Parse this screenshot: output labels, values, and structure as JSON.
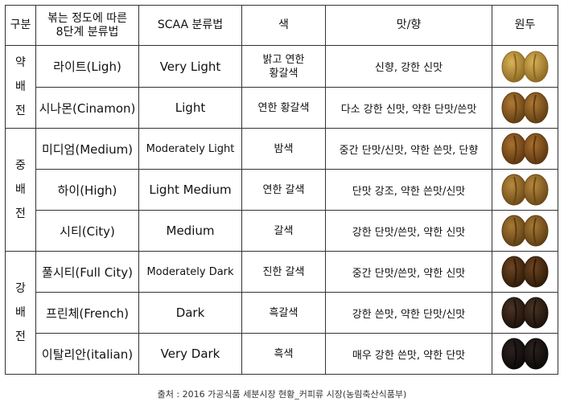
{
  "table": {
    "headers": {
      "group": "구분",
      "stage": "볶는 정도에 따른\n8단계 분류법",
      "scaa": "SCAA 분류법",
      "color": "색",
      "taste": "맛/향",
      "bean": "원두"
    },
    "groups": [
      {
        "chars": [
          "약",
          "배",
          "전"
        ]
      },
      {
        "chars": [
          "중",
          "배",
          "전"
        ]
      },
      {
        "chars": [
          "강",
          "배",
          "전"
        ]
      }
    ],
    "rows": [
      {
        "stage": "라이트(Ligh)",
        "scaa": "Very Light",
        "color": "밝고 연한\n황갈색",
        "taste": "신향, 강한  신맛",
        "bean_color": "#d8b45a",
        "bean_dark": "#8a6620"
      },
      {
        "stage": "시나몬(Cinamon)",
        "scaa": "Light",
        "color": "연한 황갈색",
        "taste": "다소 강한 신맛, 약한 단맛/쓴맛",
        "bean_color": "#b07a35",
        "bean_dark": "#5e3b12"
      },
      {
        "stage": "미디엄(Medium)",
        "scaa": "Moderately Light",
        "color": "밤색",
        "taste": "중간 단맛/신맛, 약한 쓴맛, 단향",
        "bean_color": "#a8702e",
        "bean_dark": "#5a3510"
      },
      {
        "stage": "하이(High)",
        "scaa": "Light Medium",
        "color": "연한 갈색",
        "taste": "단맛 강조, 약한 쓴맛/신맛",
        "bean_color": "#b98a3e",
        "bean_dark": "#6a4818"
      },
      {
        "stage": "시티(City)",
        "scaa": "Medium",
        "color": "갈색",
        "taste": "강한 단맛/쓴맛, 약한 신맛",
        "bean_color": "#a87a35",
        "bean_dark": "#5b3d12"
      },
      {
        "stage": "풀시티(Full City)",
        "scaa": "Moderately Dark",
        "color": "진한 갈색",
        "taste": "중간 단맛/쓴맛, 약한 신맛",
        "bean_color": "#6e4521",
        "bean_dark": "#2e1a08"
      },
      {
        "stage": "프린체(French)",
        "scaa": "Dark",
        "color": "흑갈색",
        "taste": "강한 쓴맛, 약한 단맛/신맛",
        "bean_color": "#4a3424",
        "bean_dark": "#1a100a"
      },
      {
        "stage": "이탈리안(italian)",
        "scaa": "Very Dark",
        "color": "흑색",
        "taste": "매우 강한 쓴맛, 약한 단맛",
        "bean_color": "#2a2220",
        "bean_dark": "#0c0808"
      }
    ]
  },
  "caption": "출처 : 2016 가공식품 세분시장 현황_커피류 시장(농림축산식품부)"
}
